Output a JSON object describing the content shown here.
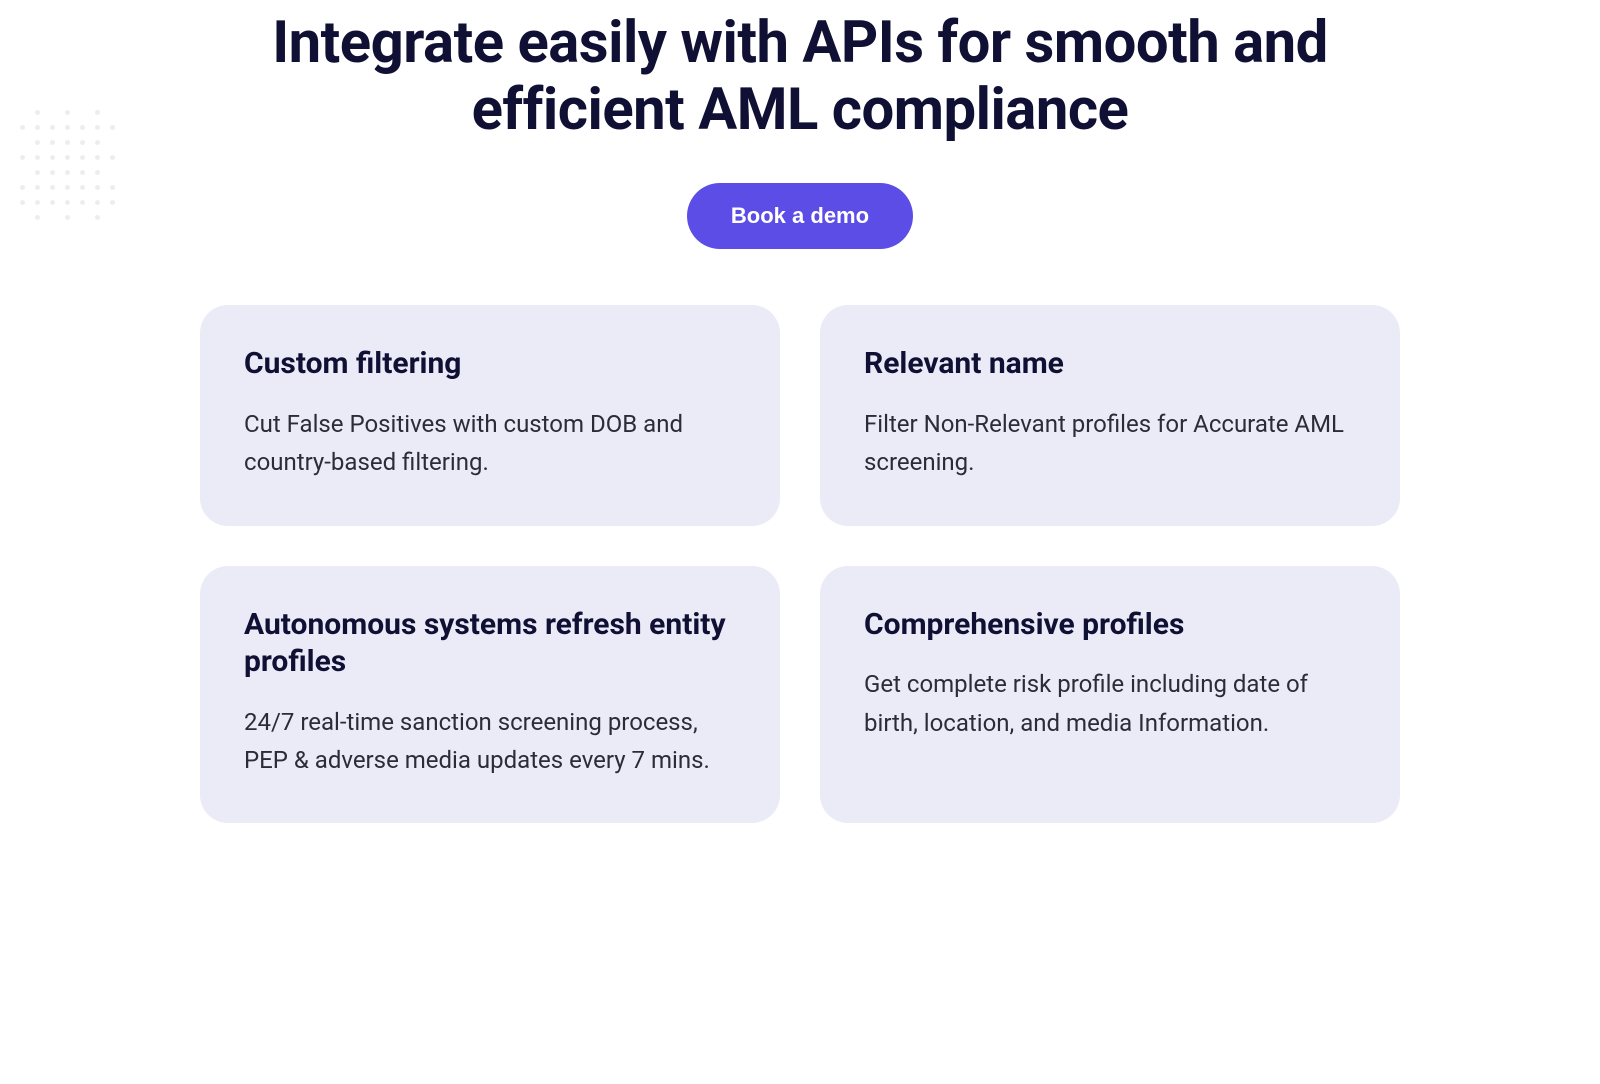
{
  "hero": {
    "headline": "Integrate easily with APIs for smooth and efficient AML compliance",
    "cta_label": "Book a demo"
  },
  "colors": {
    "heading": "#0f1033",
    "body_text": "#2b2b3a",
    "card_bg": "#ebebf7",
    "cta_bg": "#5b4de5",
    "cta_text": "#ffffff",
    "page_bg": "#ffffff"
  },
  "cards": [
    {
      "title": "Custom filtering",
      "body": "Cut False Positives with custom DOB and country-based filtering."
    },
    {
      "title": "Relevant name",
      "body": "Filter Non-Relevant profiles for Accurate AML screening."
    },
    {
      "title": "Autonomous systems refresh entity profiles",
      "body": "24/7 real-time sanction screening process, PEP & adverse media updates every 7 mins."
    },
    {
      "title": "Comprehensive profiles",
      "body": "Get complete risk profile including date of birth, location, and media Information."
    }
  ]
}
